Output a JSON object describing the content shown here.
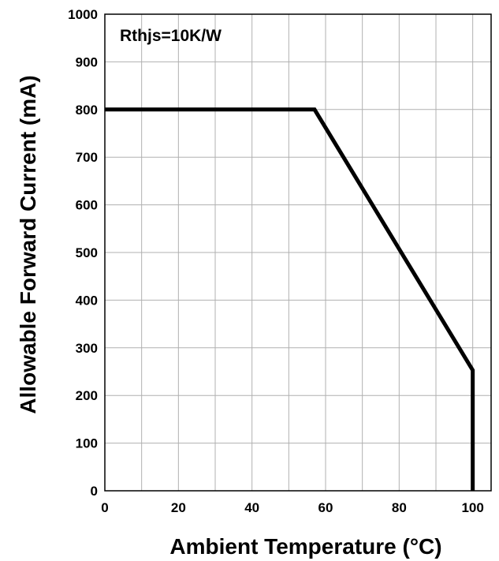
{
  "chart_data": {
    "type": "line",
    "title": "",
    "annotation": "Rthjs=10K/W",
    "xlabel": "Ambient Temperature (°C)",
    "ylabel": "Allowable Forward Current (mA)",
    "xlim": [
      0,
      105
    ],
    "ylim": [
      0,
      1000
    ],
    "x_ticks": [
      0,
      20,
      40,
      60,
      80,
      100
    ],
    "y_ticks": [
      0,
      100,
      200,
      300,
      400,
      500,
      600,
      700,
      800,
      900,
      1000
    ],
    "x_gridlines": [
      0,
      10,
      20,
      30,
      40,
      50,
      60,
      70,
      80,
      90,
      100,
      105
    ],
    "y_gridlines": [
      0,
      100,
      200,
      300,
      400,
      500,
      600,
      700,
      800,
      900,
      1000
    ],
    "grid": true,
    "line_color": "#000000",
    "grid_color": "#b0b0b0",
    "series": [
      {
        "x": [
          0,
          57,
          100,
          100
        ],
        "y": [
          800,
          800,
          253,
          0
        ]
      }
    ]
  }
}
